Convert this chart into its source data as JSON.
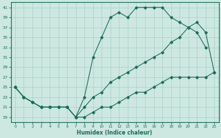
{
  "xlabel": "Humidex (Indice chaleur)",
  "bg_color": "#cce8e0",
  "line_color": "#1a6b5a",
  "grid_color": "#aacfc8",
  "xlim": [
    -0.5,
    23.5
  ],
  "ylim": [
    18,
    42
  ],
  "yticks": [
    19,
    21,
    23,
    25,
    27,
    29,
    31,
    33,
    35,
    37,
    39,
    41
  ],
  "xticks": [
    0,
    1,
    2,
    3,
    4,
    5,
    6,
    7,
    8,
    9,
    10,
    11,
    12,
    13,
    14,
    15,
    16,
    17,
    18,
    19,
    20,
    21,
    22,
    23
  ],
  "line1_x": [
    0,
    1,
    2,
    3,
    4,
    5,
    6,
    7,
    8,
    9,
    10,
    11,
    12,
    13,
    14,
    15,
    16,
    17,
    18,
    19,
    20,
    21,
    22
  ],
  "line1_y": [
    25,
    23,
    22,
    21,
    21,
    21,
    21,
    19,
    23,
    31,
    35,
    39,
    40,
    39,
    41,
    41,
    41,
    41,
    39,
    38,
    37,
    36,
    33
  ],
  "line2_x": [
    0,
    1,
    2,
    3,
    4,
    5,
    6,
    7,
    8,
    9,
    10,
    11,
    12,
    13,
    14,
    15,
    16,
    17,
    18,
    19,
    20,
    21,
    22,
    23
  ],
  "line2_y": [
    25,
    23,
    22,
    21,
    21,
    21,
    21,
    19,
    21,
    23,
    24,
    26,
    27,
    28,
    29,
    30,
    31,
    32,
    34,
    35,
    37,
    38,
    36,
    28
  ],
  "line3_x": [
    0,
    1,
    2,
    3,
    4,
    5,
    6,
    7,
    8,
    9,
    10,
    11,
    12,
    13,
    14,
    15,
    16,
    17,
    18,
    19,
    20,
    21,
    22,
    23
  ],
  "line3_y": [
    25,
    23,
    22,
    21,
    21,
    21,
    21,
    19,
    19,
    20,
    21,
    21,
    22,
    23,
    24,
    24,
    25,
    26,
    27,
    27,
    27,
    27,
    27,
    28
  ]
}
